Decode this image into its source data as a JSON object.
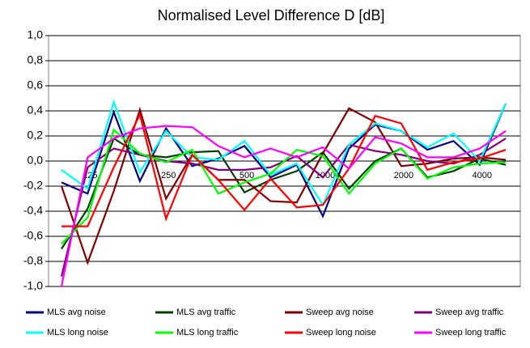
{
  "chart_data": {
    "type": "line",
    "title": "Normalised Level Difference D [dB]",
    "categories": [
      null,
      "125",
      null,
      null,
      "250",
      null,
      null,
      "500",
      null,
      null,
      "1000",
      null,
      null,
      "2000",
      null,
      null,
      "4000",
      null
    ],
    "ylim": [
      -1,
      1
    ],
    "yticks": [
      {
        "value": -1,
        "label": "-1,0"
      },
      {
        "value": -0.8,
        "label": "-0,8"
      },
      {
        "value": -0.6,
        "label": "-0,6"
      },
      {
        "value": -0.4,
        "label": "-0,4"
      },
      {
        "value": -0.2,
        "label": "-0,2"
      },
      {
        "value": 0,
        "label": "0,0"
      },
      {
        "value": 0.2,
        "label": "0,2"
      },
      {
        "value": 0.4,
        "label": "0,4"
      },
      {
        "value": 0.6,
        "label": "0,6"
      },
      {
        "value": 0.8,
        "label": "0,8"
      },
      {
        "value": 1,
        "label": "1,0"
      }
    ],
    "grid": true,
    "legend": "bottom",
    "series": [
      {
        "name": "MLS avg noise",
        "color": "#000080",
        "values": [
          -0.17,
          -0.26,
          0.39,
          -0.16,
          0.26,
          -0.04,
          0.02,
          0.12,
          -0.13,
          -0.03,
          -0.44,
          0.1,
          0.29,
          0.24,
          0.09,
          0.16,
          -0.03,
          0.46
        ]
      },
      {
        "name": "MLS avg traffic",
        "color": "#004000",
        "values": [
          -0.7,
          -0.38,
          0.18,
          0.05,
          0.03,
          0.07,
          0.08,
          -0.25,
          -0.15,
          -0.08,
          0.07,
          -0.22,
          0.0,
          0.1,
          -0.13,
          -0.08,
          0.02,
          -0.03
        ]
      },
      {
        "name": "Sweep avg noise",
        "color": "#800000",
        "values": [
          -0.2,
          -0.81,
          -0.24,
          0.41,
          -0.3,
          0.05,
          -0.15,
          -0.15,
          -0.32,
          -0.33,
          0.06,
          0.42,
          0.31,
          -0.04,
          -0.02,
          0.02,
          0.03,
          0.01
        ]
      },
      {
        "name": "Sweep avg traffic",
        "color": "#800080",
        "values": [
          -0.92,
          -0.05,
          0.1,
          0.05,
          0.0,
          -0.02,
          -0.07,
          -0.07,
          -0.05,
          0.04,
          -0.13,
          0.13,
          0.08,
          0.05,
          0.0,
          -0.02,
          0.05,
          0.18
        ]
      },
      {
        "name": "MLS long noise",
        "color": "#00ffff",
        "values": [
          -0.07,
          -0.22,
          0.47,
          -0.09,
          0.24,
          0.03,
          0.01,
          0.16,
          -0.11,
          -0.02,
          -0.35,
          0.13,
          0.3,
          0.24,
          0.11,
          0.22,
          0.0,
          0.46
        ]
      },
      {
        "name": "MLS long traffic",
        "color": "#00ff00",
        "values": [
          -0.66,
          -0.45,
          0.25,
          0.06,
          -0.01,
          0.09,
          -0.26,
          -0.17,
          -0.1,
          0.09,
          0.04,
          -0.26,
          -0.02,
          0.1,
          -0.14,
          -0.05,
          -0.02,
          -0.01
        ]
      },
      {
        "name": "Sweep long noise",
        "color": "#ff0000",
        "values": [
          -0.52,
          -0.52,
          -0.05,
          0.37,
          -0.46,
          0.05,
          -0.15,
          -0.39,
          -0.14,
          -0.37,
          -0.35,
          -0.06,
          0.36,
          0.3,
          -0.07,
          -0.01,
          0.02,
          0.09
        ]
      },
      {
        "name": "Sweep long traffic",
        "color": "#ff00ff",
        "values": [
          -1.0,
          0.03,
          0.18,
          0.26,
          0.28,
          0.27,
          0.12,
          0.03,
          0.1,
          0.03,
          0.11,
          -0.06,
          0.19,
          0.14,
          0.03,
          0.03,
          0.1,
          0.24
        ]
      }
    ]
  }
}
